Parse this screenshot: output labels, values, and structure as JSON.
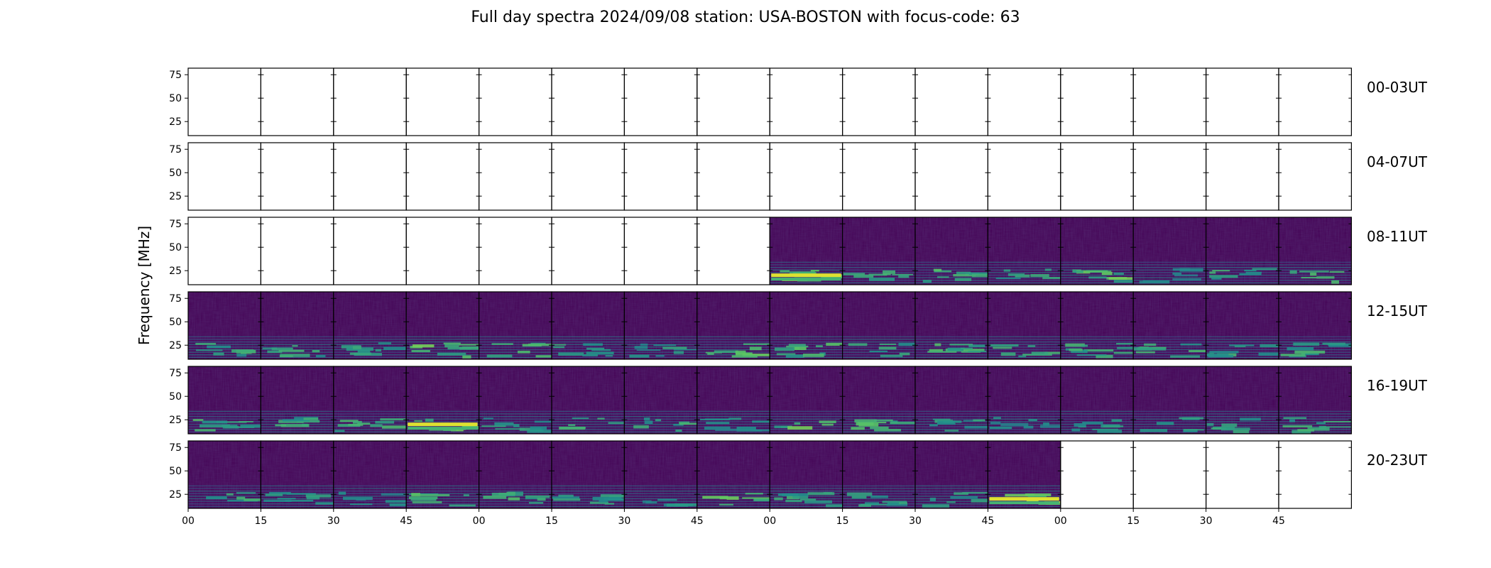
{
  "chart_data": {
    "type": "heatmap",
    "title": "Full day spectra 2024/09/08 station: USA-BOSTON with focus-code: 63",
    "ylabel": "Frequency [MHz]",
    "xlabel": "",
    "ylim": [
      10,
      82
    ],
    "y_ticks": [
      "75",
      "50",
      "25"
    ],
    "y_tick_values": [
      75,
      50,
      25
    ],
    "x_ticks": [
      "00",
      "15",
      "30",
      "45",
      "00",
      "15",
      "30",
      "45",
      "00",
      "15",
      "30",
      "45",
      "00",
      "15",
      "30",
      "45"
    ],
    "colormap": "viridis",
    "row_labels": [
      "00-03UT",
      "04-07UT",
      "08-11UT",
      "12-15UT",
      "16-19UT",
      "20-23UT"
    ],
    "panels_per_row": 16,
    "minutes_per_panel": 15,
    "data_available": [
      [
        0,
        0,
        0,
        0,
        0,
        0,
        0,
        0,
        0,
        0,
        0,
        0,
        0,
        0,
        0,
        0
      ],
      [
        0,
        0,
        0,
        0,
        0,
        0,
        0,
        0,
        0,
        0,
        0,
        0,
        0,
        0,
        0,
        0
      ],
      [
        0,
        0,
        0,
        0,
        0,
        0,
        0,
        0,
        1,
        1,
        1,
        1,
        1,
        1,
        1,
        1
      ],
      [
        1,
        1,
        1,
        1,
        1,
        1,
        1,
        1,
        1,
        1,
        1,
        1,
        1,
        1,
        1,
        1
      ],
      [
        1,
        1,
        1,
        1,
        1,
        1,
        1,
        1,
        1,
        1,
        1,
        1,
        1,
        1,
        1,
        1
      ],
      [
        1,
        1,
        1,
        1,
        1,
        1,
        1,
        1,
        1,
        1,
        1,
        1,
        0,
        0,
        0,
        0
      ]
    ],
    "band_intensity": [
      [
        0,
        0,
        0,
        0,
        0,
        0,
        0,
        0,
        0,
        0,
        0,
        0,
        0,
        0,
        0,
        0
      ],
      [
        0,
        0,
        0,
        0,
        0,
        0,
        0,
        0,
        0,
        0,
        0,
        0,
        0,
        0,
        0,
        0
      ],
      [
        0,
        0,
        0,
        0,
        0,
        0,
        0,
        0,
        0.8,
        0.5,
        0.6,
        0.5,
        0.7,
        0.2,
        0.5,
        0.7
      ],
      [
        0.5,
        0.5,
        0.5,
        0.7,
        0.6,
        0.5,
        0.4,
        0.7,
        0.6,
        0.5,
        0.6,
        0.5,
        0.5,
        0.6,
        0.5,
        0.5
      ],
      [
        0.6,
        0.5,
        0.5,
        0.9,
        0.4,
        0.5,
        0.5,
        0.3,
        0.7,
        0.6,
        0.4,
        0.3,
        0.4,
        0.4,
        0.5,
        0.5
      ],
      [
        0.5,
        0.4,
        0.3,
        0.6,
        0.6,
        0.4,
        0.3,
        0.7,
        0.5,
        0.4,
        0.4,
        0.9,
        0,
        0,
        0,
        0
      ]
    ],
    "grid": false
  }
}
